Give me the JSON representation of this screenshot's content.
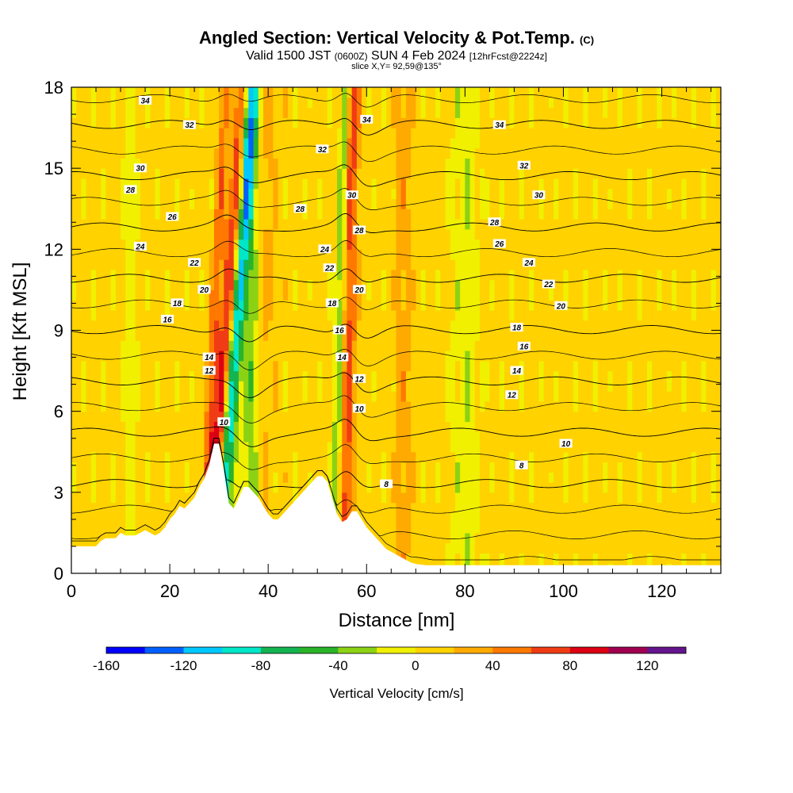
{
  "header": {
    "title": "Angled Section: Vertical Velocity & Pot.Temp.",
    "title_suffix": "(C)",
    "subtitle_a": "Valid 1500 JST",
    "subtitle_b": "(0600Z)",
    "subtitle_c": "SUN 4 Feb 2024",
    "subtitle_d": "[12hrFcst@2224z]",
    "slice": "slice X,Y= 92,59@135°"
  },
  "chart_data": {
    "type": "heatmap",
    "title": "Angled Section: Vertical Velocity & Pot.Temp.",
    "xlabel": "Distance [nm]",
    "ylabel": "Height [Kft MSL]",
    "xlim": [
      0,
      132
    ],
    "ylim": [
      0,
      18
    ],
    "xticks": [
      0,
      20,
      40,
      60,
      80,
      100,
      120
    ],
    "yticks": [
      0,
      3,
      6,
      9,
      12,
      15,
      18
    ],
    "colorbar": {
      "label": "Vertical Velocity [cm/s]",
      "ticks": [
        -160,
        -120,
        -80,
        -40,
        0,
        40,
        80,
        120
      ],
      "range": [
        -160,
        140
      ],
      "colors": [
        "#0000ff",
        "#0060ff",
        "#00c8ff",
        "#00e6c8",
        "#14b450",
        "#2ab428",
        "#8cd214",
        "#f0f000",
        "#ffd200",
        "#ffaa00",
        "#ff7800",
        "#f03c14",
        "#dc0014",
        "#a00050",
        "#64148c"
      ]
    },
    "terrain": [
      [
        0,
        1.0
      ],
      [
        5,
        1.0
      ],
      [
        6,
        1.2
      ],
      [
        7,
        1.3
      ],
      [
        9,
        1.3
      ],
      [
        10,
        1.5
      ],
      [
        11,
        1.4
      ],
      [
        13,
        1.4
      ],
      [
        14,
        1.5
      ],
      [
        15,
        1.6
      ],
      [
        16,
        1.5
      ],
      [
        17,
        1.4
      ],
      [
        18,
        1.5
      ],
      [
        19,
        1.7
      ],
      [
        20,
        2.0
      ],
      [
        21,
        2.2
      ],
      [
        22,
        2.5
      ],
      [
        23,
        2.4
      ],
      [
        24,
        2.6
      ],
      [
        25,
        2.8
      ],
      [
        26,
        3.2
      ],
      [
        27,
        3.5
      ],
      [
        28,
        4.0
      ],
      [
        29,
        4.8
      ],
      [
        30,
        4.8
      ],
      [
        31,
        3.8
      ],
      [
        32,
        2.6
      ],
      [
        33,
        2.4
      ],
      [
        34,
        2.8
      ],
      [
        35,
        3.2
      ],
      [
        36,
        3.2
      ],
      [
        37,
        3.0
      ],
      [
        38,
        2.8
      ],
      [
        39,
        2.5
      ],
      [
        40,
        2.2
      ],
      [
        41,
        2.0
      ],
      [
        42,
        2.0
      ],
      [
        43,
        2.2
      ],
      [
        44,
        2.4
      ],
      [
        45,
        2.6
      ],
      [
        46,
        2.8
      ],
      [
        47,
        3.0
      ],
      [
        48,
        3.2
      ],
      [
        49,
        3.4
      ],
      [
        50,
        3.6
      ],
      [
        51,
        3.6
      ],
      [
        52,
        3.4
      ],
      [
        53,
        2.8
      ],
      [
        54,
        2.2
      ],
      [
        55,
        1.9
      ],
      [
        56,
        2.0
      ],
      [
        57,
        2.3
      ],
      [
        58,
        2.3
      ],
      [
        59,
        2.0
      ],
      [
        60,
        1.7
      ],
      [
        61,
        1.5
      ],
      [
        62,
        1.3
      ],
      [
        63,
        1.1
      ],
      [
        64,
        0.9
      ],
      [
        65,
        0.8
      ],
      [
        66,
        0.7
      ],
      [
        67,
        0.6
      ],
      [
        68,
        0.5
      ],
      [
        69,
        0.4
      ],
      [
        70,
        0.35
      ],
      [
        72,
        0.3
      ],
      [
        80,
        0.3
      ],
      [
        132,
        0.3
      ]
    ],
    "updraft_bands": [
      {
        "x": 31.5,
        "tilt": 1.0,
        "w": 80,
        "halfwidth": 1.6
      },
      {
        "x": 56.5,
        "tilt": 0.25,
        "w": 60,
        "halfwidth": 1.3
      },
      {
        "x": 29.0,
        "tilt": 0.6,
        "w": 45,
        "halfwidth": 1.0
      },
      {
        "x": 38.0,
        "tilt": 0.3,
        "w": 22,
        "halfwidth": 3.0
      },
      {
        "x": 67.5,
        "tilt": 0.0,
        "w": 22,
        "halfwidth": 1.5
      }
    ],
    "downdraft_bands": [
      {
        "x": 33.5,
        "tilt": 0.9,
        "w": -110,
        "halfwidth": 1.4
      },
      {
        "x": 54.5,
        "tilt": 0.3,
        "w": -45,
        "halfwidth": 0.9
      },
      {
        "x": 36.5,
        "tilt": 0.0,
        "w": -60,
        "halfwidth": 1.8
      },
      {
        "x": 12.0,
        "tilt": 0.0,
        "w": -22,
        "halfwidth": 1.3
      },
      {
        "x": 80.0,
        "tilt": 0.0,
        "w": -25,
        "halfwidth": 2.5
      }
    ],
    "theta_levels": [
      8,
      10,
      12,
      14,
      16,
      18,
      20,
      22,
      24,
      26,
      28,
      30,
      32,
      34
    ],
    "theta_labels": [
      {
        "text": "34",
        "x": 15.0,
        "y": 17.5
      },
      {
        "text": "32",
        "x": 24.0,
        "y": 16.6
      },
      {
        "text": "30",
        "x": 14.0,
        "y": 15.0
      },
      {
        "text": "28",
        "x": 12.0,
        "y": 14.2
      },
      {
        "text": "26",
        "x": 20.5,
        "y": 13.2
      },
      {
        "text": "24",
        "x": 14.0,
        "y": 12.1
      },
      {
        "text": "22",
        "x": 25.0,
        "y": 11.5
      },
      {
        "text": "20",
        "x": 27.0,
        "y": 10.5
      },
      {
        "text": "18",
        "x": 21.5,
        "y": 10.0
      },
      {
        "text": "16",
        "x": 19.5,
        "y": 9.4
      },
      {
        "text": "14",
        "x": 28.0,
        "y": 8.0
      },
      {
        "text": "12",
        "x": 28.0,
        "y": 7.5
      },
      {
        "text": "10",
        "x": 31.0,
        "y": 5.6
      },
      {
        "text": "34",
        "x": 60.0,
        "y": 16.8
      },
      {
        "text": "32",
        "x": 51.0,
        "y": 15.7
      },
      {
        "text": "30",
        "x": 57.0,
        "y": 14.0
      },
      {
        "text": "28",
        "x": 46.5,
        "y": 13.5
      },
      {
        "text": "28",
        "x": 58.5,
        "y": 12.7
      },
      {
        "text": "24",
        "x": 51.5,
        "y": 12.0
      },
      {
        "text": "22",
        "x": 52.5,
        "y": 11.3
      },
      {
        "text": "20",
        "x": 58.5,
        "y": 10.5
      },
      {
        "text": "18",
        "x": 53.0,
        "y": 10.0
      },
      {
        "text": "16",
        "x": 54.5,
        "y": 9.0
      },
      {
        "text": "14",
        "x": 55.0,
        "y": 8.0
      },
      {
        "text": "12",
        "x": 58.5,
        "y": 7.2
      },
      {
        "text": "10",
        "x": 58.5,
        "y": 6.1
      },
      {
        "text": "8",
        "x": 64.0,
        "y": 3.3
      },
      {
        "text": "34",
        "x": 87.0,
        "y": 16.6
      },
      {
        "text": "32",
        "x": 92.0,
        "y": 15.1
      },
      {
        "text": "30",
        "x": 95.0,
        "y": 14.0
      },
      {
        "text": "28",
        "x": 86.0,
        "y": 13.0
      },
      {
        "text": "26",
        "x": 87.0,
        "y": 12.2
      },
      {
        "text": "24",
        "x": 93.0,
        "y": 11.5
      },
      {
        "text": "22",
        "x": 97.0,
        "y": 10.7
      },
      {
        "text": "20",
        "x": 99.5,
        "y": 9.9
      },
      {
        "text": "18",
        "x": 90.5,
        "y": 9.1
      },
      {
        "text": "16",
        "x": 92.0,
        "y": 8.4
      },
      {
        "text": "14",
        "x": 90.5,
        "y": 7.5
      },
      {
        "text": "12",
        "x": 89.5,
        "y": 6.6
      },
      {
        "text": "10",
        "x": 100.5,
        "y": 4.8
      },
      {
        "text": "8",
        "x": 91.5,
        "y": 4.0
      }
    ]
  }
}
